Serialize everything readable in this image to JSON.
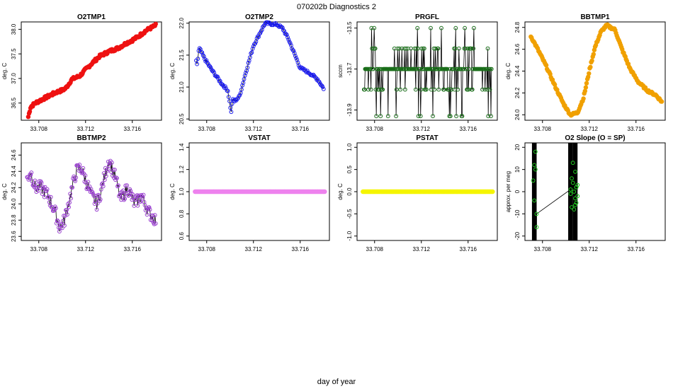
{
  "page": {
    "title": "070202b    Diagnostics 2",
    "xlabel": "day of year"
  },
  "colors": {
    "red": "#ee1111",
    "blue": "#1a1aee",
    "green": "#1a6e1a",
    "orange": "#f0a000",
    "purple": "#9a40d0",
    "violet": "#ee82ee",
    "yellow": "#f5f500",
    "lime": "#22cc22",
    "black": "#000000"
  },
  "chart_data": [
    {
      "type": "scatter",
      "id": "o2tmp1",
      "title": "O2TMP1",
      "ylabel": "deg. C",
      "color": "red",
      "open": false,
      "lines": false,
      "xlim": [
        33.7065,
        33.7185
      ],
      "ylim": [
        36.15,
        38.15
      ],
      "xticks": [
        "33.708",
        "33.712",
        "33.716"
      ],
      "xtickv": [
        33.708,
        33.712,
        33.716
      ],
      "yticks": [
        "36.5",
        "37.0",
        "37.5",
        "38.0"
      ],
      "ytickv": [
        36.5,
        37.0,
        37.5,
        38.0
      ],
      "x": [
        33.7071,
        33.7073,
        33.7077,
        33.7085,
        33.7095,
        33.71,
        33.7103,
        33.7106,
        33.7108,
        33.7112,
        33.7115,
        33.712,
        33.7126,
        33.7132,
        33.714,
        33.7148,
        33.7155,
        33.716,
        33.7165,
        33.7172,
        33.718
      ],
      "y": [
        36.22,
        36.42,
        36.5,
        36.6,
        36.72,
        36.76,
        36.8,
        36.9,
        36.98,
        37.02,
        37.05,
        37.18,
        37.32,
        37.45,
        37.55,
        37.62,
        37.72,
        37.78,
        37.85,
        37.98,
        38.08
      ],
      "n": 170,
      "noise": 0.03
    },
    {
      "type": "scatter",
      "id": "o2tmp2",
      "title": "O2TMP2",
      "ylabel": "deg. C",
      "color": "blue",
      "open": true,
      "lines": true,
      "xlim": [
        33.7065,
        33.7185
      ],
      "ylim": [
        20.48,
        22.02
      ],
      "xticks": [
        "33.708",
        "33.712",
        "33.716"
      ],
      "xtickv": [
        33.708,
        33.712,
        33.716
      ],
      "yticks": [
        "20.5",
        "21.0",
        "21.5",
        "22.0"
      ],
      "ytickv": [
        20.5,
        21.0,
        21.5,
        22.0
      ],
      "x": [
        33.7071,
        33.7072,
        33.7073,
        33.7074,
        33.7078,
        33.7085,
        33.7093,
        33.7098,
        33.7101,
        33.7102,
        33.7104,
        33.7108,
        33.7113,
        33.712,
        33.713,
        33.714,
        33.7145,
        33.715,
        33.716,
        33.7168,
        33.7175,
        33.718
      ],
      "y": [
        21.4,
        21.35,
        21.55,
        21.6,
        21.45,
        21.25,
        21.05,
        20.95,
        20.6,
        20.8,
        20.78,
        20.85,
        21.2,
        21.65,
        22.0,
        21.98,
        21.92,
        21.75,
        21.3,
        21.22,
        21.12,
        20.98
      ],
      "n": 150,
      "noise": 0.02
    },
    {
      "type": "scatter",
      "id": "prgfl",
      "title": "PRGFL",
      "ylabel": "sccm",
      "color": "green",
      "open": true,
      "lines": true,
      "mode": "binary",
      "xlim": [
        33.7065,
        33.7185
      ],
      "ylim": [
        -13.95,
        -13.47
      ],
      "xticks": [
        "33.708",
        "33.712",
        "33.716"
      ],
      "xtickv": [
        33.708,
        33.712,
        33.716
      ],
      "yticks": [
        "-13.5",
        "-13.7",
        "-13.9"
      ],
      "ytickv": [
        -13.5,
        -13.7,
        -13.9
      ],
      "levels": [
        -13.7,
        -13.8,
        -13.6,
        -13.93,
        -13.5
      ],
      "n": 240
    },
    {
      "type": "scatter",
      "id": "bbtmp1",
      "title": "BBTMP1",
      "ylabel": "deg. C",
      "color": "orange",
      "open": false,
      "lines": false,
      "xlim": [
        33.7065,
        33.7185
      ],
      "ylim": [
        23.95,
        24.85
      ],
      "xticks": [
        "33.708",
        "33.712",
        "33.716"
      ],
      "xtickv": [
        33.708,
        33.712,
        33.716
      ],
      "yticks": [
        "24.0",
        "24.2",
        "24.4",
        "24.6",
        "24.8"
      ],
      "ytickv": [
        24.0,
        24.2,
        24.4,
        24.6,
        24.8
      ],
      "x": [
        33.707,
        33.7075,
        33.7083,
        33.709,
        33.7098,
        33.7104,
        33.711,
        33.7115,
        33.712,
        33.7125,
        33.713,
        33.7135,
        33.7138,
        33.7142,
        33.7148,
        33.7155,
        33.7162,
        33.717,
        33.7177,
        33.7182
      ],
      "y": [
        24.72,
        24.62,
        24.45,
        24.28,
        24.1,
        24.0,
        24.02,
        24.15,
        24.4,
        24.62,
        24.76,
        24.82,
        24.8,
        24.78,
        24.6,
        24.42,
        24.3,
        24.22,
        24.18,
        24.12
      ],
      "n": 170,
      "noise": 0.01
    },
    {
      "type": "scatter",
      "id": "bbtmp2",
      "title": "BBTMP2",
      "ylabel": "deg. C",
      "color": "purple",
      "open": true,
      "lines": true,
      "xlim": [
        33.7065,
        33.7185
      ],
      "ylim": [
        23.55,
        24.75
      ],
      "xticks": [
        "33.708",
        "33.712",
        "33.716"
      ],
      "xtickv": [
        33.708,
        33.712,
        33.716
      ],
      "yticks": [
        "23.6",
        "23.8",
        "24.0",
        "24.2",
        "24.4",
        "24.6"
      ],
      "ytickv": [
        23.6,
        23.8,
        24.0,
        24.2,
        24.4,
        24.6
      ],
      "x": [
        33.707,
        33.7073,
        33.7077,
        33.7082,
        33.7088,
        33.7094,
        33.7098,
        33.7102,
        33.7107,
        33.7112,
        33.7116,
        33.712,
        33.7125,
        33.713,
        33.7134,
        33.714,
        33.7146,
        33.715,
        33.7156,
        33.7162,
        33.7168,
        33.7174,
        33.718
      ],
      "y": [
        24.3,
        24.4,
        24.2,
        24.2,
        24.1,
        23.9,
        23.7,
        23.8,
        24.1,
        24.4,
        24.45,
        24.3,
        24.1,
        24.0,
        24.2,
        24.55,
        24.3,
        24.05,
        24.2,
        24.0,
        24.1,
        23.9,
        23.8
      ],
      "n": 180,
      "noise": 0.08
    },
    {
      "type": "scatter",
      "id": "vstat",
      "title": "VSTAT",
      "ylabel": "deg. C",
      "color": "violet",
      "open": false,
      "lines": false,
      "xlim": [
        33.7065,
        33.7185
      ],
      "ylim": [
        0.56,
        1.44
      ],
      "xticks": [
        "33.708",
        "33.712",
        "33.716"
      ],
      "xtickv": [
        33.708,
        33.712,
        33.716
      ],
      "yticks": [
        "0.6",
        "0.8",
        "1.0",
        "1.2",
        "1.4"
      ],
      "ytickv": [
        0.6,
        0.8,
        1.0,
        1.2,
        1.4
      ],
      "x": [
        33.707,
        33.7181
      ],
      "y": [
        1.0,
        1.0
      ],
      "n": 170,
      "noise": 0
    },
    {
      "type": "scatter",
      "id": "pstat",
      "title": "PSTAT",
      "ylabel": "deg. C",
      "color": "yellow",
      "open": false,
      "lines": false,
      "xlim": [
        33.7065,
        33.7185
      ],
      "ylim": [
        -1.1,
        1.1
      ],
      "xticks": [
        "33.708",
        "33.712",
        "33.716"
      ],
      "xtickv": [
        33.708,
        33.712,
        33.716
      ],
      "yticks": [
        "-1.0",
        "-0.5",
        "0.0",
        "0.5",
        "1.0"
      ],
      "ytickv": [
        -1.0,
        -0.5,
        0.0,
        0.5,
        1.0
      ],
      "x": [
        33.707,
        33.7181
      ],
      "y": [
        0.0,
        0.0
      ],
      "n": 170,
      "noise": 0
    },
    {
      "type": "scatter",
      "id": "o2slope",
      "title": "O2 Slope (O = SP)",
      "ylabel": "approx. per meg",
      "color": "lime",
      "open": true,
      "lines": true,
      "mode": "slope",
      "xlim": [
        33.7065,
        33.7185
      ],
      "ylim": [
        -22,
        22
      ],
      "xticks": [
        "33.708",
        "33.712",
        "33.716"
      ],
      "xtickv": [
        33.708,
        33.712,
        33.716
      ],
      "yticks": [
        "-20",
        "-10",
        "0",
        "10",
        "20"
      ],
      "ytickv": [
        -20,
        -10,
        0,
        10,
        20
      ],
      "bands": [
        [
          33.7071,
          33.7075
        ],
        [
          33.7102,
          33.7106
        ],
        [
          33.7106,
          33.711
        ]
      ],
      "x": [
        33.7072,
        33.7073,
        33.7073,
        33.7074,
        33.7074,
        33.7075,
        33.7075,
        33.7104,
        33.7105,
        33.7106,
        33.7106,
        33.7107,
        33.7108,
        33.7108,
        33.7109,
        33.7109,
        33.711,
        33.7104,
        33.7105,
        33.7107,
        33.7108,
        33.7109,
        33.711
      ],
      "y": [
        5,
        12,
        -4,
        18,
        10,
        -16,
        -10,
        1,
        -7,
        13,
        4,
        -8,
        9,
        -3,
        2,
        -5,
        3,
        -1,
        6,
        0,
        -6,
        2,
        -2
      ]
    }
  ]
}
